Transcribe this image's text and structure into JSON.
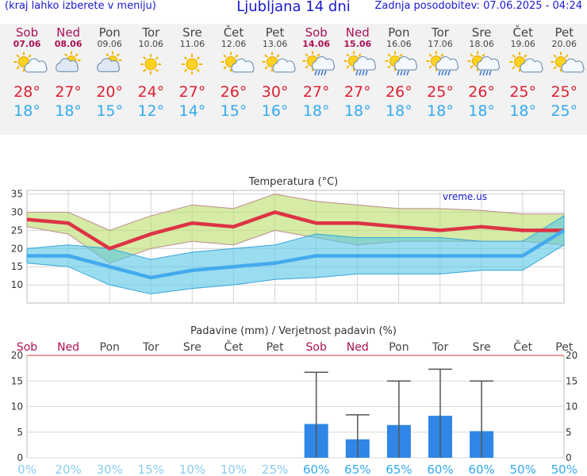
{
  "header": {
    "hint": "(kraj lahko izberete v meniju)",
    "title": "Ljubljana 14 dni",
    "updated": "Zadnja posodobitev: 07.06.2025 - 04:24"
  },
  "days": [
    {
      "name": "Sob",
      "date": "07.06",
      "icon": "sun-cloud-icon",
      "tmax": "28°",
      "tmin": "18°",
      "weekend": true
    },
    {
      "name": "Ned",
      "date": "08.06",
      "icon": "cloud-sun-icon",
      "tmax": "27°",
      "tmin": "18°",
      "weekend": true
    },
    {
      "name": "Pon",
      "date": "09.06",
      "icon": "cloud-sun-icon",
      "tmax": "20°",
      "tmin": "15°",
      "weekend": false
    },
    {
      "name": "Tor",
      "date": "10.06",
      "icon": "sun-icon",
      "tmax": "24°",
      "tmin": "12°",
      "weekend": false
    },
    {
      "name": "Sre",
      "date": "11.06",
      "icon": "sun-icon",
      "tmax": "27°",
      "tmin": "14°",
      "weekend": false
    },
    {
      "name": "Čet",
      "date": "12.06",
      "icon": "sun-cloud-icon",
      "tmax": "26°",
      "tmin": "15°",
      "weekend": false
    },
    {
      "name": "Pet",
      "date": "13.06",
      "icon": "sun-cloud-icon",
      "tmax": "30°",
      "tmin": "16°",
      "weekend": false
    },
    {
      "name": "Sob",
      "date": "14.06",
      "icon": "sun-rain-icon",
      "tmax": "27°",
      "tmin": "18°",
      "weekend": true
    },
    {
      "name": "Ned",
      "date": "15.06",
      "icon": "sun-rain-icon",
      "tmax": "27°",
      "tmin": "18°",
      "weekend": true
    },
    {
      "name": "Pon",
      "date": "16.06",
      "icon": "sun-rain-icon",
      "tmax": "26°",
      "tmin": "18°",
      "weekend": false
    },
    {
      "name": "Tor",
      "date": "17.06",
      "icon": "sun-rain-icon",
      "tmax": "25°",
      "tmin": "18°",
      "weekend": false
    },
    {
      "name": "Sre",
      "date": "18.06",
      "icon": "sun-rain-icon",
      "tmax": "26°",
      "tmin": "18°",
      "weekend": false
    },
    {
      "name": "Čet",
      "date": "19.06",
      "icon": "sun-cloud-icon",
      "tmax": "25°",
      "tmin": "18°",
      "weekend": false
    },
    {
      "name": "Pet",
      "date": "20.06",
      "icon": "sun-cloud-icon",
      "tmax": "25°",
      "tmin": "25°",
      "weekend": false
    }
  ],
  "colors": {
    "max": "#dd3344",
    "min": "#44aaee",
    "weekend": "#aa1155",
    "bar": "#2f86e6",
    "prob": "#33aaee",
    "probLight": "#88ccee"
  },
  "chart_data": [
    {
      "type": "line",
      "title": "Temperatura (°C)",
      "watermark": "vreme.us",
      "x": [
        "07.06",
        "08.06",
        "09.06",
        "10.06",
        "11.06",
        "12.06",
        "13.06",
        "14.06",
        "15.06",
        "16.06",
        "17.06",
        "18.06",
        "19.06",
        "20.06"
      ],
      "ylim": [
        5,
        36
      ],
      "yticks": [
        10,
        15,
        20,
        25,
        30,
        35
      ],
      "series": [
        {
          "values": [
            28,
            27,
            20,
            24,
            27,
            26,
            30,
            27,
            27,
            26,
            25,
            26,
            25,
            25
          ]
        },
        {
          "values": [
            18,
            18,
            15,
            12,
            14,
            15,
            16,
            18,
            18,
            18,
            18,
            18,
            18,
            25
          ]
        }
      ],
      "max_band": {
        "upper": [
          30,
          30,
          25,
          29,
          32,
          31,
          35,
          33,
          32,
          31,
          31,
          30.5,
          29.5,
          29.5
        ],
        "lower": [
          26,
          24,
          16,
          20,
          22,
          21,
          25,
          23,
          21,
          22,
          22,
          22,
          22,
          21
        ]
      },
      "min_band": {
        "upper": [
          20,
          21,
          20,
          17,
          19,
          20,
          21,
          24,
          23,
          23,
          23,
          22,
          22,
          29
        ],
        "lower": [
          16,
          15,
          10,
          7.5,
          9,
          10,
          11.5,
          12,
          13,
          13,
          13,
          14,
          14,
          21
        ]
      }
    },
    {
      "type": "bar",
      "title": "Padavine (mm) / Verjetnost padavin (%)",
      "categories": [
        "Sob",
        "Ned",
        "Pon",
        "Tor",
        "Sre",
        "Čet",
        "Pet",
        "Sob",
        "Ned",
        "Pon",
        "Tor",
        "Sre",
        "Čet",
        "Pet"
      ],
      "ylim": [
        0,
        20
      ],
      "yticks": [
        0,
        5,
        10,
        15,
        20
      ],
      "values": [
        0,
        0,
        0,
        0,
        0,
        0,
        0,
        6.6,
        3.6,
        6.4,
        8.2,
        5.2,
        0,
        0
      ],
      "error_high": [
        0,
        0,
        0,
        0,
        0,
        0,
        0,
        16.7,
        8.4,
        15,
        17.3,
        15,
        0,
        0
      ],
      "probability": [
        "0%",
        "20%",
        "30%",
        "15%",
        "10%",
        "10%",
        "25%",
        "60%",
        "65%",
        "65%",
        "60%",
        "60%",
        "50%",
        "50%"
      ]
    }
  ]
}
